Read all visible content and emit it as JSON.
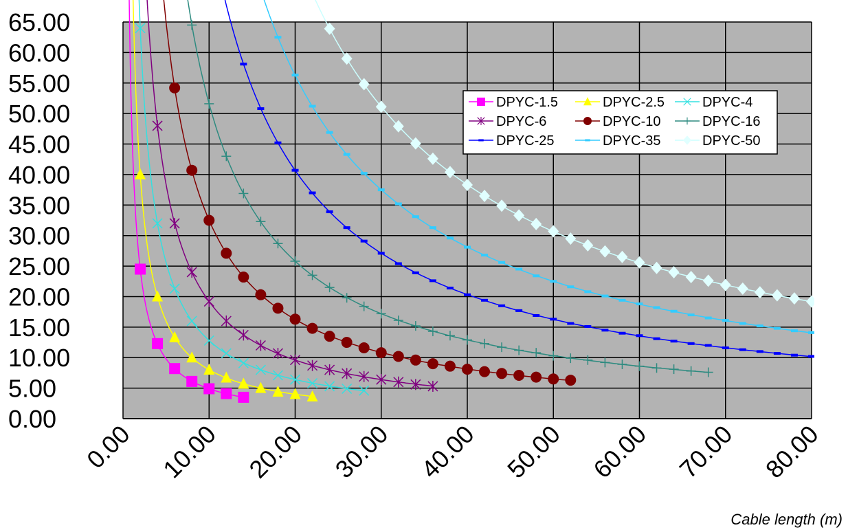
{
  "chart_data": {
    "type": "line",
    "title": "",
    "xlabel": "Cable length (m)",
    "ylabel": "",
    "xlim": [
      0,
      80
    ],
    "ylim": [
      0,
      65
    ],
    "x_ticks": [
      "0.00",
      "10.00",
      "20.00",
      "30.00",
      "40.00",
      "50.00",
      "60.00",
      "70.00",
      "80.00"
    ],
    "y_ticks": [
      "0.00",
      "5.00",
      "10.00",
      "15.00",
      "20.00",
      "25.00",
      "30.00",
      "35.00",
      "40.00",
      "45.00",
      "50.00",
      "55.00",
      "60.00",
      "65.00"
    ],
    "grid": true,
    "legend_position": "top-right",
    "series": [
      {
        "name": "DPYC-1.5",
        "color": "#ff00ff",
        "marker": "square",
        "line_color": "#ff00ff",
        "x": [
          2,
          4,
          6,
          8,
          10,
          12,
          14
        ],
        "y": [
          24.5,
          12.3,
          8.2,
          6.1,
          4.9,
          4.1,
          3.5
        ]
      },
      {
        "name": "DPYC-2.5",
        "color": "#ffff00",
        "marker": "triangle",
        "line_color": "#ffff00",
        "x": [
          2,
          4,
          6,
          8,
          10,
          12,
          14,
          16,
          18,
          20,
          22
        ],
        "y": [
          40,
          20,
          13.3,
          10,
          8,
          6.7,
          5.7,
          5,
          4.4,
          4,
          3.6
        ]
      },
      {
        "name": "DPYC-4",
        "color": "#33e0e0",
        "marker": "x",
        "line_color": "#33e0e0",
        "x": [
          2,
          4,
          6,
          8,
          10,
          12,
          14,
          16,
          18,
          20,
          22,
          24,
          26,
          28
        ],
        "y": [
          64,
          32,
          21.3,
          16,
          12.8,
          10.7,
          9.1,
          8,
          7.1,
          6.4,
          5.8,
          5.3,
          4.9,
          4.6
        ]
      },
      {
        "name": "DPYC-6",
        "color": "#800080",
        "marker": "star",
        "line_color": "#800080",
        "x": [
          4,
          6,
          8,
          10,
          12,
          14,
          16,
          18,
          20,
          22,
          24,
          26,
          28,
          30,
          32,
          34,
          36
        ],
        "y": [
          48,
          32,
          24,
          19.2,
          16,
          13.7,
          12,
          10.7,
          9.6,
          8.7,
          8,
          7.4,
          6.9,
          6.4,
          6,
          5.6,
          5.3
        ]
      },
      {
        "name": "DPYC-10",
        "color": "#800000",
        "marker": "circle",
        "line_color": "#800000",
        "x": [
          6,
          8,
          10,
          12,
          14,
          16,
          18,
          20,
          22,
          24,
          26,
          28,
          30,
          32,
          34,
          36,
          38,
          40,
          42,
          44,
          46,
          48,
          50,
          52
        ],
        "y": [
          54.2,
          40.7,
          32.5,
          27.1,
          23.2,
          20.3,
          18.1,
          16.3,
          14.8,
          13.5,
          12.5,
          11.6,
          10.8,
          10.2,
          9.6,
          9,
          8.6,
          8.1,
          7.7,
          7.4,
          7.1,
          6.8,
          6.5,
          6.3
        ]
      },
      {
        "name": "DPYC-16",
        "color": "#2e8b80",
        "marker": "plus",
        "line_color": "#2e8b80",
        "x": [
          8,
          10,
          12,
          14,
          16,
          18,
          20,
          22,
          24,
          26,
          28,
          30,
          32,
          34,
          36,
          38,
          40,
          42,
          44,
          46,
          48,
          50,
          52,
          54,
          56,
          58,
          60,
          62,
          64,
          66,
          68
        ],
        "y": [
          64.5,
          51.6,
          43,
          36.9,
          32.3,
          28.7,
          25.8,
          23.5,
          21.5,
          19.8,
          18.4,
          17.2,
          16.1,
          15.2,
          14.3,
          13.6,
          12.9,
          12.3,
          11.7,
          11.2,
          10.8,
          10.3,
          9.9,
          9.6,
          9.2,
          8.9,
          8.6,
          8.3,
          8.1,
          7.8,
          7.6
        ]
      },
      {
        "name": "DPYC-25",
        "color": "#0000ff",
        "marker": "dash",
        "line_color": "#0000ff",
        "x": [
          14,
          16,
          18,
          20,
          22,
          24,
          26,
          28,
          30,
          32,
          34,
          36,
          38,
          40,
          42,
          44,
          46,
          48,
          50,
          52,
          54,
          56,
          58,
          60,
          62,
          64,
          66,
          68,
          70,
          72,
          74,
          76,
          78,
          80
        ],
        "y": [
          58.1,
          50.8,
          45.2,
          40.7,
          37,
          33.9,
          31.3,
          29.1,
          27.1,
          25.4,
          23.9,
          22.6,
          21.4,
          20.3,
          19.4,
          18.5,
          17.7,
          16.9,
          16.3,
          15.6,
          15.1,
          14.5,
          14,
          13.6,
          13.1,
          12.7,
          12.3,
          12,
          11.6,
          11.3,
          11,
          10.7,
          10.4,
          10.2
        ]
      },
      {
        "name": "DPYC-35",
        "color": "#33ccff",
        "marker": "dash",
        "line_color": "#33ccff",
        "x": [
          18,
          20,
          22,
          24,
          26,
          28,
          30,
          32,
          34,
          36,
          38,
          40,
          42,
          44,
          46,
          48,
          50,
          52,
          54,
          56,
          58,
          60,
          62,
          64,
          66,
          68,
          70,
          72,
          74,
          76,
          78,
          80
        ],
        "y": [
          62.5,
          56.3,
          51.2,
          46.9,
          43.3,
          40.2,
          37.5,
          35.2,
          33.1,
          31.3,
          29.6,
          28.1,
          26.8,
          25.6,
          24.5,
          23.4,
          22.5,
          21.6,
          20.8,
          20.1,
          19.4,
          18.8,
          18.2,
          17.6,
          17,
          16.5,
          16.1,
          15.6,
          15.2,
          14.8,
          14.4,
          14.1
        ]
      },
      {
        "name": "DPYC-50",
        "color": "#e0ffff",
        "marker": "diamond",
        "line_color": "#ccffff",
        "x": [
          24,
          26,
          28,
          30,
          32,
          34,
          36,
          38,
          40,
          42,
          44,
          46,
          48,
          50,
          52,
          54,
          56,
          58,
          60,
          62,
          64,
          66,
          68,
          70,
          72,
          74,
          76,
          78,
          80
        ],
        "y": [
          63.9,
          59,
          54.8,
          51.1,
          47.9,
          45.1,
          42.6,
          40.4,
          38.3,
          36.5,
          34.9,
          33.3,
          31.9,
          30.7,
          29.5,
          28.4,
          27.4,
          26.5,
          25.6,
          24.7,
          24,
          23.2,
          22.6,
          21.9,
          21.3,
          20.7,
          20.2,
          19.7,
          19.2
        ]
      }
    ]
  }
}
